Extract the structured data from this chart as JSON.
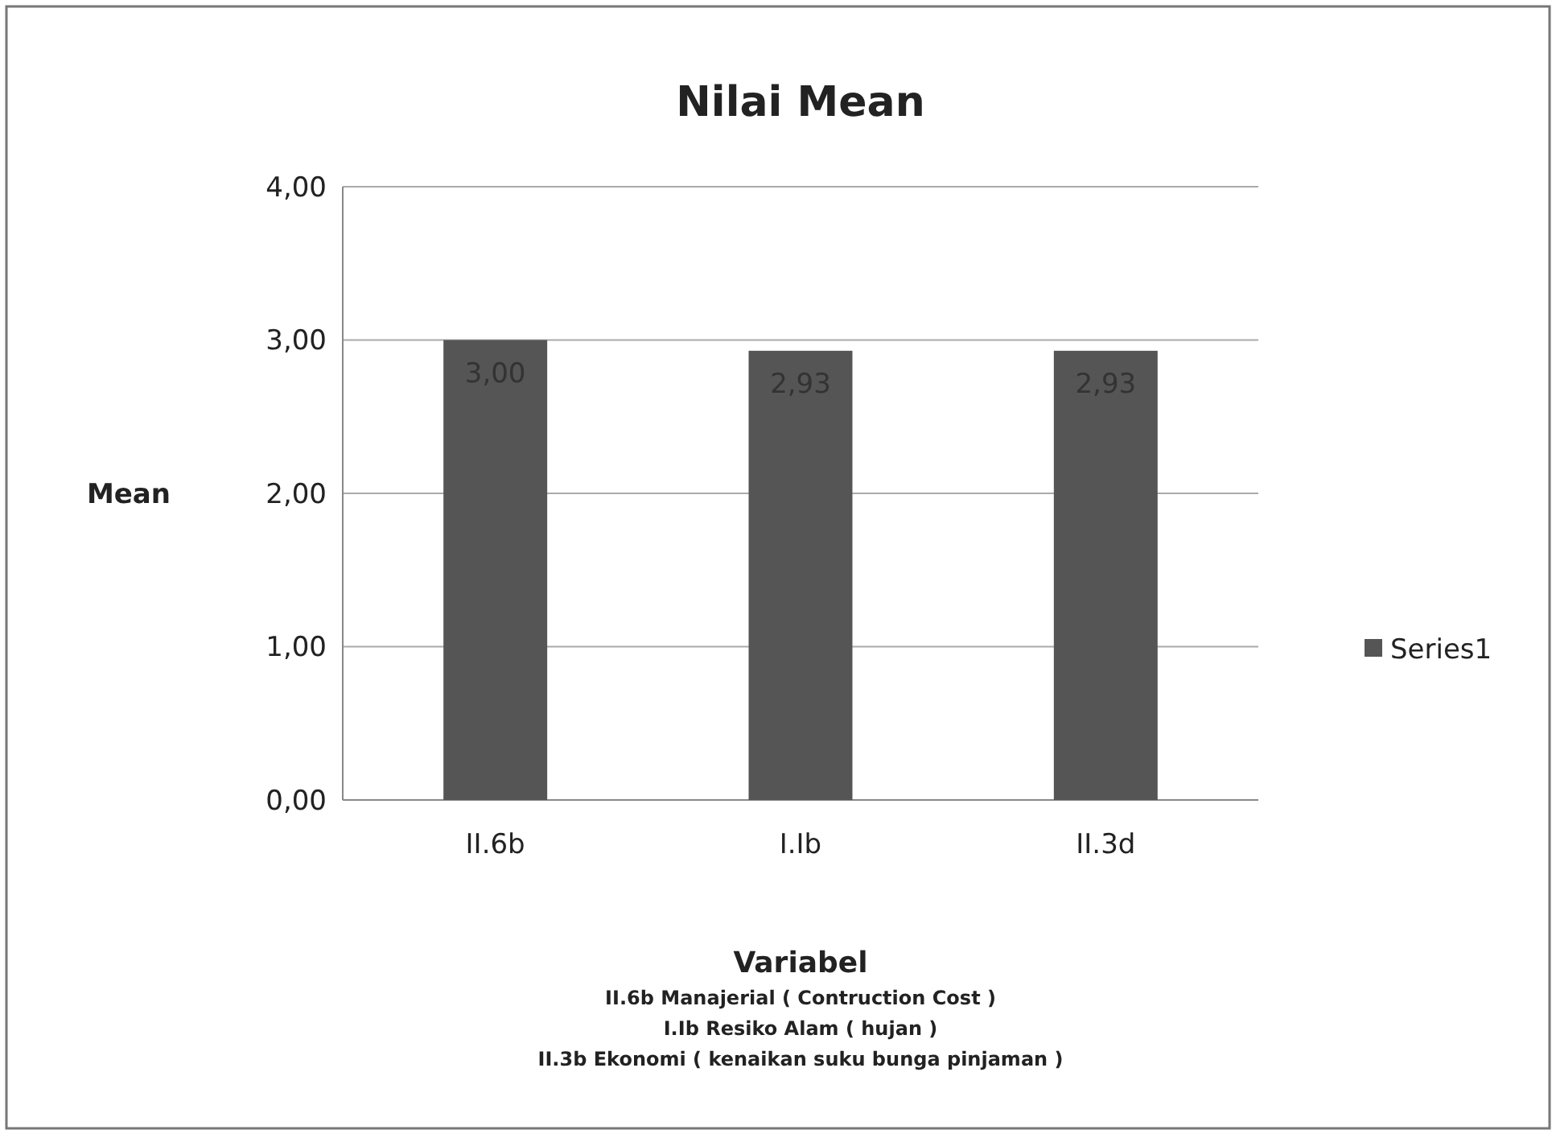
{
  "chart_data": {
    "type": "bar",
    "title": "Nilai Mean",
    "xlabel": "Variabel",
    "ylabel": "Mean",
    "categories": [
      "II.6b",
      "I.Ib",
      "II.3d"
    ],
    "series": [
      {
        "name": "Series1",
        "color": "#555555",
        "values": [
          3.0,
          2.93,
          2.93
        ],
        "value_labels": [
          "3,00",
          "2,93",
          "2,93"
        ]
      }
    ],
    "ylim": [
      0,
      4
    ],
    "yticks": [
      {
        "value": 0,
        "label": "0,00"
      },
      {
        "value": 1,
        "label": "1,00"
      },
      {
        "value": 2,
        "label": "2,00"
      },
      {
        "value": 3,
        "label": "3,00"
      },
      {
        "value": 4,
        "label": "4,00"
      }
    ],
    "grid": "y",
    "legend": "right",
    "annotations": [
      "II.6b Manajerial ( Contruction Cost )",
      "I.Ib  Resiko Alam ( hujan )",
      "II.3b Ekonomi ( kenaikan suku bunga pinjaman )"
    ]
  }
}
